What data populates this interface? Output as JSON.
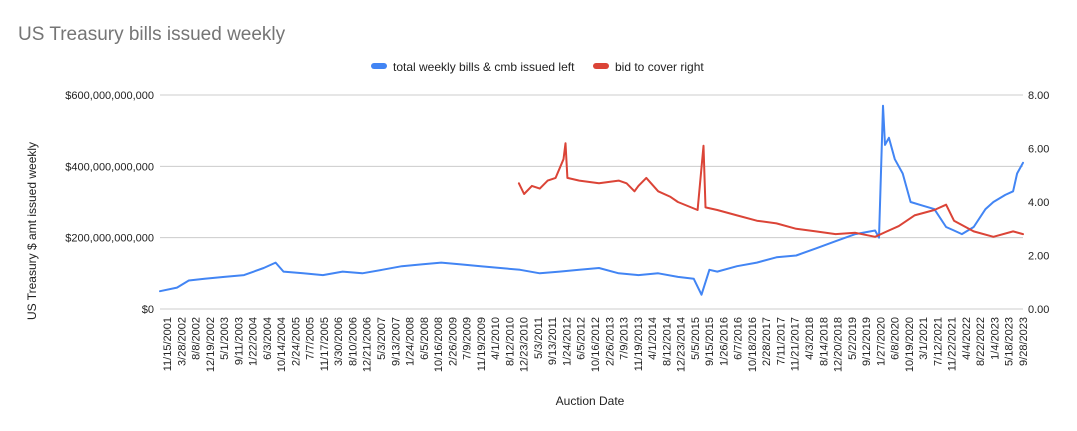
{
  "chart_data": {
    "type": "line",
    "title": "US Treasury bills issued weekly",
    "xlabel": "Auction Date",
    "ylabel": "US Treasury $ amt issued weekly",
    "y_left": {
      "range": [
        0,
        600000000000
      ],
      "ticks": [
        0,
        200000000000,
        400000000000,
        600000000000
      ],
      "tick_labels": [
        "$0",
        "$200,000,000,000",
        "$400,000,000,000",
        "$600,000,000,000"
      ]
    },
    "y_right": {
      "range": [
        0,
        8
      ],
      "ticks": [
        0,
        2,
        4,
        6,
        8
      ],
      "tick_labels": [
        "0.00",
        "2.00",
        "4.00",
        "6.00",
        "8.00"
      ]
    },
    "x_range": [
      2001.87,
      2023.75
    ],
    "x_tick_labels": [
      "11/15/2001",
      "3/28/2002",
      "8/8/2002",
      "12/19/2002",
      "5/1/2003",
      "9/11/2003",
      "1/22/2004",
      "6/3/2004",
      "10/14/2004",
      "2/24/2005",
      "7/7/2005",
      "11/17/2005",
      "3/30/2006",
      "8/10/2006",
      "12/21/2006",
      "5/3/2007",
      "9/13/2007",
      "1/24/2008",
      "6/5/2008",
      "10/16/2008",
      "2/26/2009",
      "7/9/2009",
      "11/19/2009",
      "4/1/2010",
      "8/12/2010",
      "12/23/2010",
      "5/3/2011",
      "9/13/2011",
      "1/24/2012",
      "6/5/2012",
      "10/16/2012",
      "2/26/2013",
      "7/9/2013",
      "11/19/2013",
      "4/1/2014",
      "8/12/2014",
      "12/23/2014",
      "5/5/2015",
      "9/15/2015",
      "1/26/2016",
      "6/7/2016",
      "10/18/2016",
      "2/28/2017",
      "7/11/2017",
      "11/21/2017",
      "4/3/2018",
      "8/14/2018",
      "12/20/2018",
      "5/2/2019",
      "9/12/2019",
      "1/27/2020",
      "6/8/2020",
      "10/19/2020",
      "3/1/2021",
      "7/12/2021",
      "11/22/2021",
      "4/4/2022",
      "8/22/2022",
      "1/4/2023",
      "5/18/2023",
      "9/28/2023"
    ],
    "legend": {
      "position": "top"
    },
    "series": [
      {
        "name": "total weekly bills & cmb issued left",
        "axis": "left",
        "color": "#4285f4",
        "x": [
          2001.87,
          2002.3,
          2002.6,
          2003.0,
          2003.5,
          2004.0,
          2004.5,
          2004.8,
          2005.0,
          2005.5,
          2006.0,
          2006.5,
          2007.0,
          2007.5,
          2008.0,
          2008.5,
          2009.0,
          2009.5,
          2010.0,
          2010.5,
          2011.0,
          2011.5,
          2012.0,
          2012.5,
          2013.0,
          2013.5,
          2014.0,
          2014.5,
          2015.0,
          2015.4,
          2015.6,
          2015.8,
          2016.0,
          2016.5,
          2017.0,
          2017.5,
          2018.0,
          2018.5,
          2019.0,
          2019.5,
          2020.0,
          2020.1,
          2020.2,
          2020.25,
          2020.35,
          2020.5,
          2020.7,
          2020.9,
          2021.2,
          2021.5,
          2021.8,
          2022.0,
          2022.2,
          2022.5,
          2022.8,
          2023.0,
          2023.3,
          2023.5,
          2023.6,
          2023.75
        ],
        "values": [
          50000000000,
          60000000000,
          80000000000,
          85000000000,
          90000000000,
          95000000000,
          115000000000,
          130000000000,
          105000000000,
          100000000000,
          95000000000,
          105000000000,
          100000000000,
          110000000000,
          120000000000,
          125000000000,
          130000000000,
          125000000000,
          120000000000,
          115000000000,
          110000000000,
          100000000000,
          105000000000,
          110000000000,
          115000000000,
          100000000000,
          95000000000,
          100000000000,
          90000000000,
          85000000000,
          40000000000,
          110000000000,
          105000000000,
          120000000000,
          130000000000,
          145000000000,
          150000000000,
          170000000000,
          190000000000,
          210000000000,
          220000000000,
          200000000000,
          570000000000,
          460000000000,
          480000000000,
          420000000000,
          380000000000,
          300000000000,
          290000000000,
          280000000000,
          230000000000,
          220000000000,
          210000000000,
          230000000000,
          280000000000,
          300000000000,
          320000000000,
          330000000000,
          380000000000,
          410000000000
        ]
      },
      {
        "name": "bid to cover right",
        "axis": "right",
        "color": "#db4437",
        "x": [
          2010.97,
          2011.1,
          2011.3,
          2011.5,
          2011.7,
          2011.9,
          2012.1,
          2012.15,
          2012.2,
          2012.5,
          2013.0,
          2013.5,
          2013.7,
          2013.9,
          2014.0,
          2014.2,
          2014.5,
          2014.8,
          2015.0,
          2015.5,
          2015.65,
          2015.7,
          2016.0,
          2016.5,
          2017.0,
          2017.5,
          2018.0,
          2018.5,
          2019.0,
          2019.5,
          2020.0,
          2020.3,
          2020.6,
          2021.0,
          2021.5,
          2021.8,
          2022.0,
          2022.5,
          2023.0,
          2023.5,
          2023.75
        ],
        "values": [
          4.7,
          4.3,
          4.6,
          4.5,
          4.8,
          4.9,
          5.6,
          6.2,
          4.9,
          4.8,
          4.7,
          4.8,
          4.7,
          4.4,
          4.6,
          4.9,
          4.4,
          4.2,
          4.0,
          3.7,
          6.1,
          3.8,
          3.7,
          3.5,
          3.3,
          3.2,
          3.0,
          2.9,
          2.8,
          2.85,
          2.7,
          2.9,
          3.1,
          3.5,
          3.7,
          3.9,
          3.3,
          2.9,
          2.7,
          2.9,
          2.8
        ]
      }
    ]
  }
}
